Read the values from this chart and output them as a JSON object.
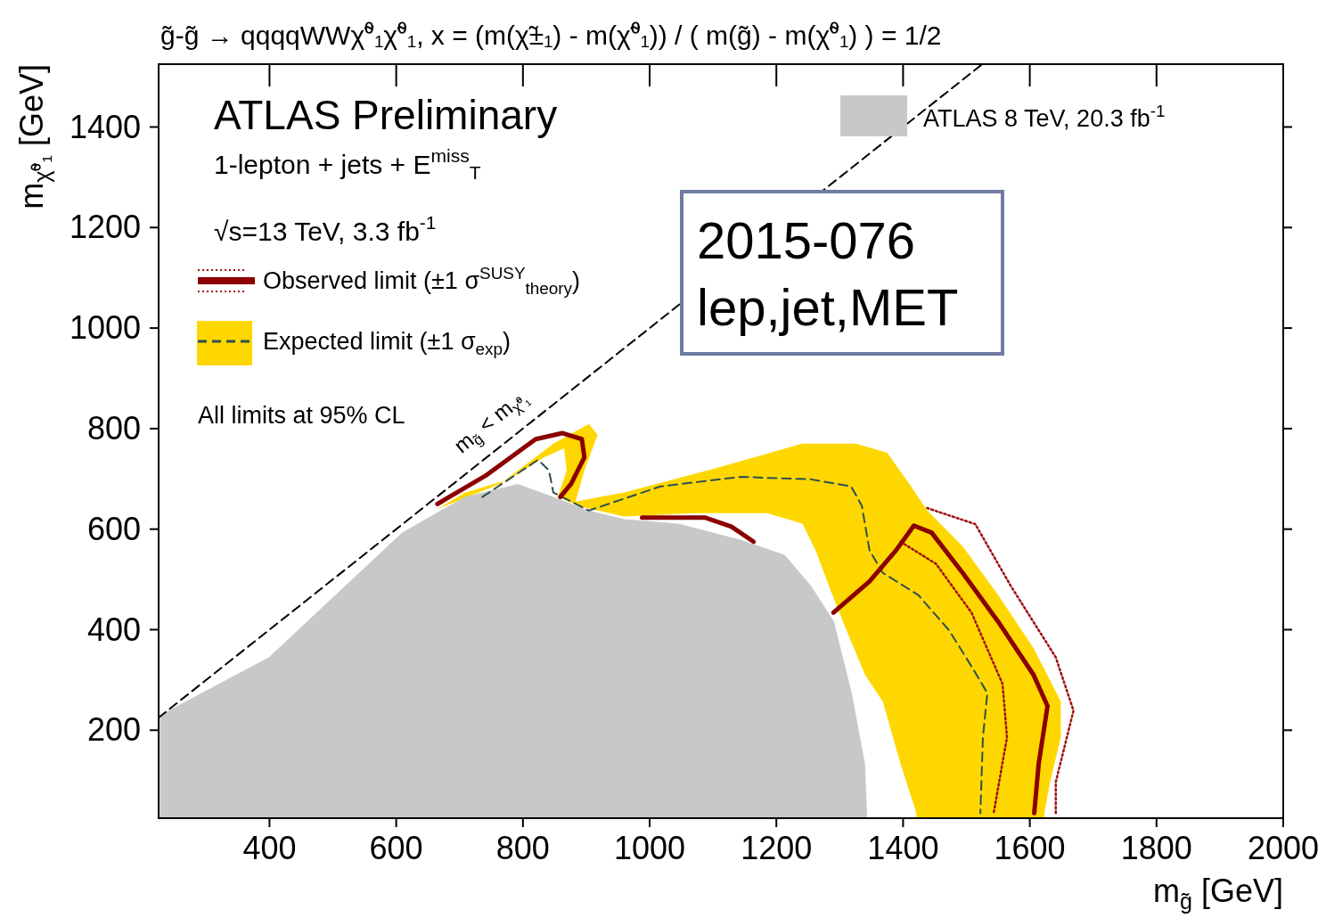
{
  "chart_data": {
    "type": "line",
    "title": "g̃-g̃ → qqqqWWχ̃⁰₁χ̃⁰₁, x = (m(χ̃±₁) - m(χ̃⁰₁)) / ( m(g̃) - m(χ̃⁰₁) ) = 1/2",
    "xlabel": "m$_{g̃}$ [GeV]",
    "ylabel": "m$_{χ̃⁰₁}$ [GeV]",
    "xlim": [
      225,
      2000
    ],
    "xticks": [
      400,
      600,
      800,
      1000,
      1200,
      1400,
      1600,
      1800,
      2000
    ],
    "ylim": [
      25,
      1525
    ],
    "yticks": [
      200,
      400,
      600,
      800,
      1000,
      1200,
      1400
    ],
    "grid": false,
    "legend": "top",
    "series": [
      {
        "type": "area",
        "color": "#ffd700",
        "x": [
          1421,
          1396,
          1368,
          1340,
          1305,
          1283,
          1262,
          1241,
          1185,
          1073,
          960,
          890,
          855,
          869,
          865,
          834,
          778,
          708,
          665,
          764,
          848,
          904,
          918,
          897,
          883,
          960,
          1101,
          1241,
          1326,
          1375,
          1410,
          1438,
          1494,
          1550,
          1606,
          1649,
          1649,
          1632,
          1623
        ],
        "values": [
          35,
          133,
          257,
          310,
          416,
          487,
          558,
          611,
          632,
          632,
          625,
          645,
          664,
          717,
          761,
          743,
          699,
          672,
          640,
          690,
          770,
          809,
          788,
          717,
          655,
          673,
          720,
          770,
          770,
          752,
          690,
          637,
          566,
          469,
          363,
          257,
          186,
          97,
          35
        ]
      },
      {
        "type": "area",
        "name": "ATLAS 8 TeV, 20.3 fb$^{-1}$",
        "color": "#c8c8c8",
        "x": [
          227,
          399,
          609,
          708,
          792,
          848,
          904,
          960,
          1045,
          1143,
          1213,
          1255,
          1291,
          1319,
          1340,
          1343
        ],
        "values": [
          230,
          345,
          593,
          664,
          690,
          664,
          637,
          620,
          611,
          579,
          549,
          487,
          416,
          274,
          133,
          35
        ]
      },
      {
        "type": "line",
        "color": "#000000",
        "line_style": "dashed",
        "x": [
          225,
          1525
        ],
        "values": [
          225,
          1525
        ]
      },
      {
        "type": "line",
        "color": "#a01010",
        "line_style": "dotted",
        "x": [
          1438,
          1514,
          1570,
          1641,
          1669,
          1641,
          1641
        ],
        "values": [
          642,
          610,
          487,
          345,
          239,
          97,
          35
        ]
      },
      {
        "type": "line",
        "color": "#a01010",
        "line_style": "dotted",
        "x": [
          1396,
          1452,
          1508,
          1557,
          1564,
          1543
        ],
        "values": [
          575,
          531,
          434,
          292,
          186,
          35
        ]
      },
      {
        "type": "line",
        "name": "Expected limit (±1 σ$_{exp}$)",
        "color": "#2f4f4f",
        "line_style": "dashed",
        "x": [
          736,
          824,
          841,
          848,
          904,
          1017,
          1143,
          1255,
          1318,
          1335,
          1347,
          1368,
          1424,
          1473,
          1508,
          1533,
          1526,
          1522
        ],
        "values": [
          664,
          738,
          717,
          673,
          637,
          685,
          704,
          699,
          685,
          646,
          558,
          513,
          469,
          398,
          327,
          274,
          186,
          35
        ]
      },
      {
        "type": "line",
        "name": "Observed limit (±1 σ$^{SUSY}$$_{theory}$)",
        "color": "#8b0000",
        "line_style": "solid",
        "x": [
          665,
          743,
          820,
          862,
          893,
          897,
          876,
          859,
          null,
          988,
          1087,
          1129,
          1164,
          null,
          1290,
          1347,
          1389,
          1417,
          1445,
          1494,
          1550,
          1606,
          1628,
          1614,
          1607
        ],
        "values": [
          650,
          708,
          779,
          791,
          779,
          743,
          690,
          664,
          null,
          623,
          623,
          605,
          575,
          null,
          434,
          496,
          558,
          607,
          593,
          513,
          416,
          310,
          248,
          133,
          35
        ]
      }
    ],
    "annotations": [
      "ATLAS Preliminary",
      "1-lepton + jets + E$^{miss}$$_{T}$",
      "√s=13 TeV, 3.3 fb$^{-1}$",
      "All limits at 95% CL",
      {
        "text": "m$_{g̃}$ < m$_{χ̃⁰₁}$",
        "x": 900,
        "y": 900
      },
      "2015-076",
      "lep,jet,MET"
    ]
  }
}
